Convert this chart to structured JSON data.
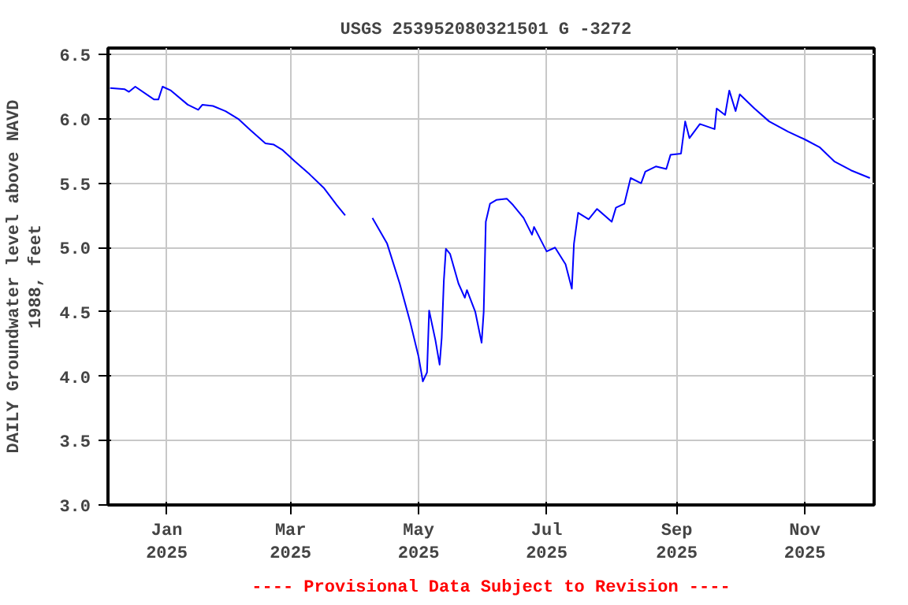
{
  "chart_data": {
    "type": "line",
    "title": "USGS 253952080321501 G  -3272",
    "ylabel": "DAILY Groundwater level above NAVD\n1988, feet",
    "annotations": [
      "---- Provisional Data Subject to Revision ----"
    ],
    "x": [
      "2024-12-05",
      "2024-12-12",
      "2024-12-14",
      "2024-12-17",
      "2024-12-26",
      "2024-12-28",
      "2024-12-30",
      "2025-01-03",
      "2025-01-11",
      "2025-01-16",
      "2025-01-18",
      "2025-01-23",
      "2025-01-29",
      "2025-02-04",
      "2025-02-10",
      "2025-02-17",
      "2025-02-21",
      "2025-02-25",
      "2025-03-03",
      "2025-03-10",
      "2025-03-17",
      "2025-03-23",
      "2025-03-27",
      "2025-04-03",
      "2025-04-09",
      "2025-04-16",
      "2025-04-22",
      "2025-04-27",
      "2025-05-01",
      "2025-05-03",
      "2025-05-05",
      "2025-05-06",
      "2025-05-09",
      "2025-05-11",
      "2025-05-12",
      "2025-05-13",
      "2025-05-14",
      "2025-05-16",
      "2025-05-20",
      "2025-05-23",
      "2025-05-24",
      "2025-05-28",
      "2025-05-31",
      "2025-06-01",
      "2025-06-02",
      "2025-06-04",
      "2025-06-07",
      "2025-06-12",
      "2025-06-15",
      "2025-06-20",
      "2025-06-24",
      "2025-06-25",
      "2025-07-01",
      "2025-07-05",
      "2025-07-10",
      "2025-07-13",
      "2025-07-14",
      "2025-07-16",
      "2025-07-21",
      "2025-07-25",
      "2025-08-01",
      "2025-08-03",
      "2025-08-07",
      "2025-08-10",
      "2025-08-15",
      "2025-08-17",
      "2025-08-22",
      "2025-08-27",
      "2025-08-29",
      "2025-09-03",
      "2025-09-05",
      "2025-09-07",
      "2025-09-12",
      "2025-09-19",
      "2025-09-20",
      "2025-09-24",
      "2025-09-26",
      "2025-09-29",
      "2025-10-01",
      "2025-10-08",
      "2025-10-15",
      "2025-10-24",
      "2025-11-01",
      "2025-11-08",
      "2025-11-15",
      "2025-11-23",
      "2025-12-02"
    ],
    "series": [
      {
        "color": "#0000ff",
        "values": [
          6.24,
          6.23,
          6.21,
          6.25,
          6.15,
          6.15,
          6.25,
          6.22,
          6.11,
          6.07,
          6.11,
          6.1,
          6.06,
          6.0,
          5.91,
          5.81,
          5.8,
          5.76,
          5.67,
          5.57,
          5.46,
          5.33,
          5.25,
          null,
          5.23,
          5.03,
          4.72,
          4.42,
          4.15,
          3.96,
          4.03,
          4.51,
          4.28,
          4.09,
          4.3,
          4.74,
          4.99,
          4.95,
          4.72,
          4.61,
          4.67,
          4.5,
          4.26,
          4.5,
          5.2,
          5.34,
          5.37,
          5.38,
          5.33,
          5.23,
          5.1,
          5.16,
          4.97,
          5.0,
          4.87,
          4.68,
          5.03,
          5.27,
          5.22,
          5.3,
          5.2,
          5.31,
          5.34,
          5.54,
          5.5,
          5.59,
          5.63,
          5.61,
          5.72,
          5.73,
          5.98,
          5.85,
          5.96,
          5.92,
          6.08,
          6.03,
          6.22,
          6.06,
          6.19,
          6.08,
          5.98,
          5.9,
          5.84,
          5.78,
          5.67,
          5.6,
          5.54
        ]
      }
    ],
    "xlim": [
      "2024-12-04",
      "2025-12-04"
    ],
    "xticks": [
      {
        "value": "2025-01-01",
        "label": "Jan\n2025"
      },
      {
        "value": "2025-03-01",
        "label": "Mar\n2025"
      },
      {
        "value": "2025-05-01",
        "label": "May\n2025"
      },
      {
        "value": "2025-07-01",
        "label": "Jul\n2025"
      },
      {
        "value": "2025-09-01",
        "label": "Sep\n2025"
      },
      {
        "value": "2025-11-01",
        "label": "Nov\n2025"
      }
    ],
    "ylim": [
      3.0,
      6.55
    ],
    "yticks": [
      {
        "value": 3,
        "label": "3.0"
      },
      {
        "value": 3.5,
        "label": "3.5"
      },
      {
        "value": 4,
        "label": "4.0"
      },
      {
        "value": 4.5,
        "label": "4.5"
      },
      {
        "value": 5,
        "label": "5.0"
      },
      {
        "value": 5.5,
        "label": "5.5"
      },
      {
        "value": 6,
        "label": "6.0"
      },
      {
        "value": 6.5,
        "label": "6.5"
      }
    ],
    "grid": true,
    "marker": "none",
    "line_style": "solid"
  }
}
